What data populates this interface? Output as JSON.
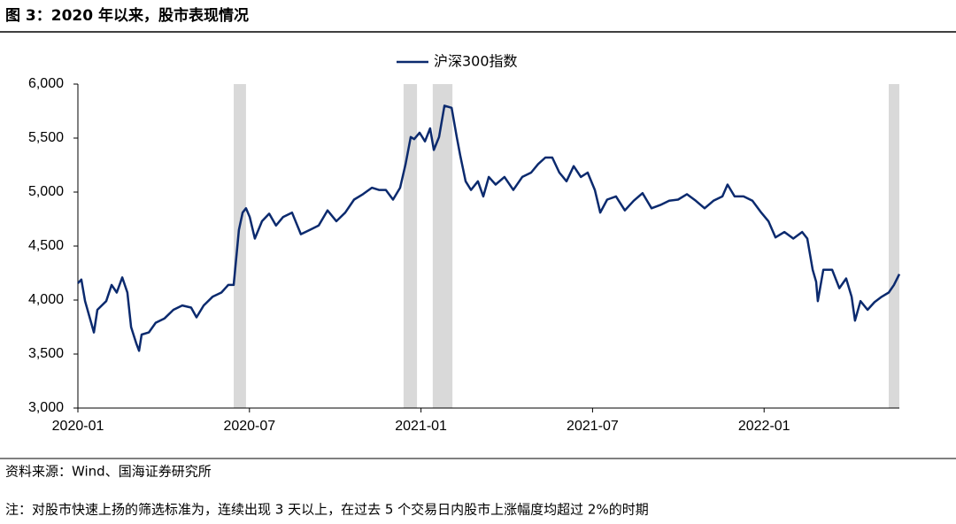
{
  "title": "图 3：2020 年以来，股市表现情况",
  "source": "资料来源：Wind、国海证券研究所",
  "note": "注：对股市快速上扬的筛选标准为，连续出现 3 天以上，在过去 5 个交易日内股市上涨幅度均超过 2%的时期",
  "chart_data": {
    "type": "line",
    "x": [
      0,
      0.12,
      0.25,
      0.56,
      0.68,
      0.99,
      1.18,
      1.36,
      1.55,
      1.73,
      1.86,
      2.04,
      2.14,
      2.23,
      2.48,
      2.72,
      3.03,
      3.34,
      3.65,
      3.96,
      4.15,
      4.4,
      4.71,
      5.02,
      5.26,
      5.45,
      5.63,
      5.76,
      5.88,
      6.01,
      6.19,
      6.44,
      6.69,
      6.93,
      7.18,
      7.49,
      7.8,
      8.11,
      8.42,
      8.73,
      9.04,
      9.35,
      9.66,
      9.97,
      10.28,
      10.53,
      10.77,
      11.02,
      11.27,
      11.46,
      11.64,
      11.76,
      11.95,
      12.14,
      12.32,
      12.45,
      12.63,
      12.82,
      13.07,
      13.25,
      13.37,
      13.56,
      13.75,
      13.99,
      14.18,
      14.37,
      14.61,
      14.92,
      15.23,
      15.54,
      15.85,
      16.1,
      16.35,
      16.59,
      16.84,
      17.09,
      17.34,
      17.59,
      17.83,
      18.08,
      18.27,
      18.51,
      18.82,
      19.13,
      19.44,
      19.75,
      20.06,
      20.37,
      20.68,
      20.99,
      21.3,
      21.61,
      21.92,
      22.23,
      22.54,
      22.72,
      22.97,
      23.28,
      23.59,
      23.9,
      24.15,
      24.4,
      24.71,
      25.02,
      25.33,
      25.51,
      25.7,
      25.82,
      25.88,
      26.07,
      26.38,
      26.63,
      26.87,
      27.06,
      27.18,
      27.37,
      27.62,
      27.86,
      28.11,
      28.36,
      28.54,
      28.73
    ],
    "series": [
      {
        "name": "沪深300指数",
        "color": "#0b2a6e",
        "values": [
          4156,
          4190,
          3990,
          3700,
          3910,
          3990,
          4140,
          4070,
          4210,
          4070,
          3750,
          3600,
          3530,
          3680,
          3700,
          3790,
          3830,
          3910,
          3950,
          3930,
          3840,
          3950,
          4030,
          4070,
          4140,
          4140,
          4650,
          4810,
          4850,
          4770,
          4570,
          4730,
          4800,
          4690,
          4770,
          4810,
          4610,
          4650,
          4690,
          4830,
          4730,
          4810,
          4930,
          4980,
          5040,
          5020,
          5020,
          4930,
          5040,
          5260,
          5510,
          5490,
          5550,
          5470,
          5590,
          5390,
          5510,
          5800,
          5780,
          5510,
          5340,
          5100,
          5020,
          5100,
          4960,
          5140,
          5070,
          5140,
          5020,
          5140,
          5180,
          5260,
          5320,
          5320,
          5180,
          5100,
          5240,
          5140,
          5180,
          5020,
          4810,
          4930,
          4960,
          4830,
          4920,
          4990,
          4850,
          4880,
          4920,
          4930,
          4980,
          4920,
          4850,
          4920,
          4960,
          5070,
          4960,
          4960,
          4920,
          4810,
          4730,
          4580,
          4630,
          4570,
          4630,
          4570,
          4280,
          4170,
          3990,
          4280,
          4280,
          4110,
          4200,
          4030,
          3810,
          3990,
          3910,
          3980,
          4030,
          4070,
          4140,
          4240
        ]
      }
    ],
    "shaded_periods": [
      [
        5.45,
        5.88
      ],
      [
        11.39,
        11.86
      ],
      [
        12.41,
        13.1
      ],
      [
        28.36,
        28.73
      ]
    ],
    "shade_color": "#d9d9d9",
    "xlim": [
      0,
      28.73
    ],
    "xticks": [
      {
        "value": 0,
        "label": "2020-01"
      },
      {
        "value": 6,
        "label": "2020-07"
      },
      {
        "value": 12,
        "label": "2021-01"
      },
      {
        "value": 18,
        "label": "2021-07"
      },
      {
        "value": 24,
        "label": "2022-01"
      }
    ],
    "ylim": [
      3000,
      6000
    ],
    "yticks": [
      {
        "value": 3000,
        "label": "3,000"
      },
      {
        "value": 3500,
        "label": "3,500"
      },
      {
        "value": 4000,
        "label": "4,000"
      },
      {
        "value": 4500,
        "label": "4,500"
      },
      {
        "value": 5000,
        "label": "5,000"
      },
      {
        "value": 5500,
        "label": "5,500"
      },
      {
        "value": 6000,
        "label": "6,000"
      }
    ],
    "grid": false,
    "legend": "top"
  }
}
